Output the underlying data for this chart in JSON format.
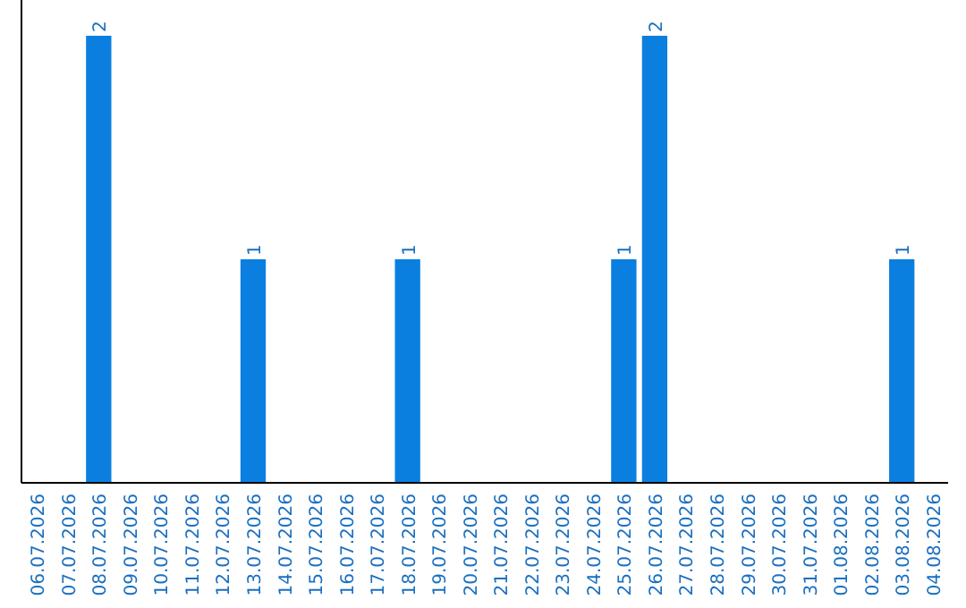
{
  "chart_data": {
    "type": "bar",
    "categories": [
      "06.07.2026",
      "07.07.2026",
      "08.07.2026",
      "09.07.2026",
      "10.07.2026",
      "11.07.2026",
      "12.07.2026",
      "13.07.2026",
      "14.07.2026",
      "15.07.2026",
      "16.07.2026",
      "17.07.2026",
      "18.07.2026",
      "19.07.2026",
      "20.07.2026",
      "21.07.2026",
      "22.07.2026",
      "23.07.2026",
      "24.07.2026",
      "25.07.2026",
      "26.07.2026",
      "27.07.2026",
      "28.07.2026",
      "29.07.2026",
      "30.07.2026",
      "31.07.2026",
      "01.08.2026",
      "02.08.2026",
      "03.08.2026",
      "04.08.2026"
    ],
    "values": [
      0,
      0,
      2,
      0,
      0,
      0,
      0,
      1,
      0,
      0,
      0,
      0,
      1,
      0,
      0,
      0,
      0,
      0,
      0,
      1,
      2,
      0,
      0,
      0,
      0,
      0,
      0,
      0,
      1,
      0
    ],
    "value_labels": [
      null,
      null,
      "2",
      null,
      null,
      null,
      null,
      "1",
      null,
      null,
      null,
      null,
      "1",
      null,
      null,
      null,
      null,
      null,
      null,
      "1",
      "2",
      null,
      null,
      null,
      null,
      null,
      null,
      null,
      "1",
      null
    ],
    "color": "#0a7fe0"
  }
}
